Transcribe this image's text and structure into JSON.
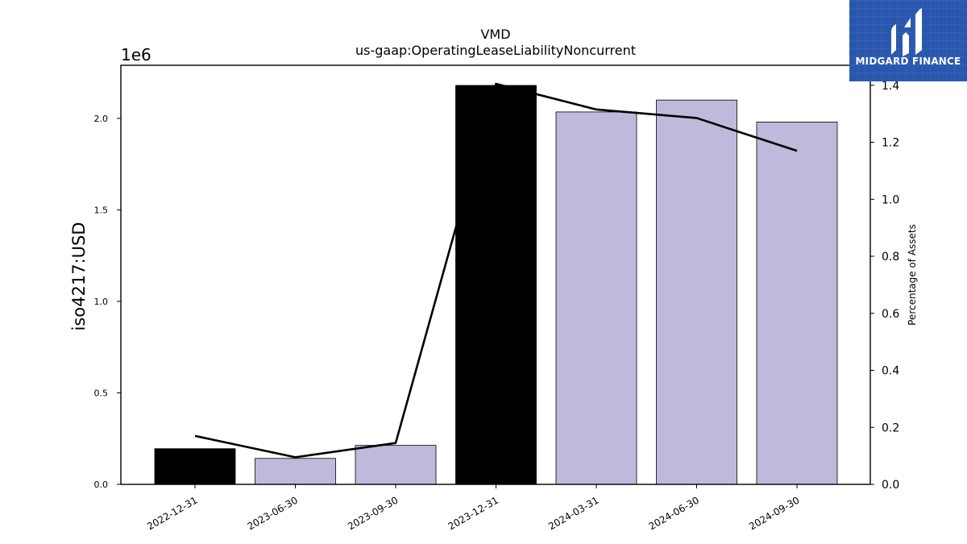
{
  "chart_data": {
    "type": "bar",
    "title": "VMD",
    "subtitle": "us-gaap:OperatingLeaseLiabilityNoncurrent",
    "ylabel": "iso4217:USD",
    "y_offset_label": "1e6",
    "y2label": "Percentage of Assets",
    "categories": [
      "2022-12-31",
      "2023-06-30",
      "2023-09-30",
      "2023-12-31",
      "2024-03-31",
      "2024-06-30",
      "2024-09-30"
    ],
    "values": [
      195000,
      142000,
      213000,
      2180000,
      2035000,
      2100000,
      1980000
    ],
    "bar_colors": [
      "#000000",
      "#bdbadb",
      "#bdbadb",
      "#000000",
      "#bdbadb",
      "#bdbadb",
      "#bdbadb"
    ],
    "line_series": {
      "values": [
        0.17,
        0.095,
        0.145,
        1.405,
        1.315,
        1.285,
        1.17
      ],
      "color": "#000000"
    },
    "ylim": [
      0,
      2290000
    ],
    "y_ticks": [
      0,
      500000,
      1000000,
      1500000,
      2000000
    ],
    "y_tick_labels": [
      "0.0",
      "0.5",
      "1.0",
      "1.5",
      "2.0"
    ],
    "y2lim": [
      0,
      1.47
    ],
    "y2_ticks": [
      0,
      0.2,
      0.4,
      0.6,
      0.8,
      1.0,
      1.2,
      1.4
    ],
    "y2_tick_labels": [
      "0.0",
      "0.2",
      "0.4",
      "0.6",
      "0.8",
      "1.0",
      "1.2",
      "1.4"
    ],
    "grid": false
  },
  "logo": {
    "text": "MIDGARD FINANCE",
    "color": "#2a57ad"
  }
}
